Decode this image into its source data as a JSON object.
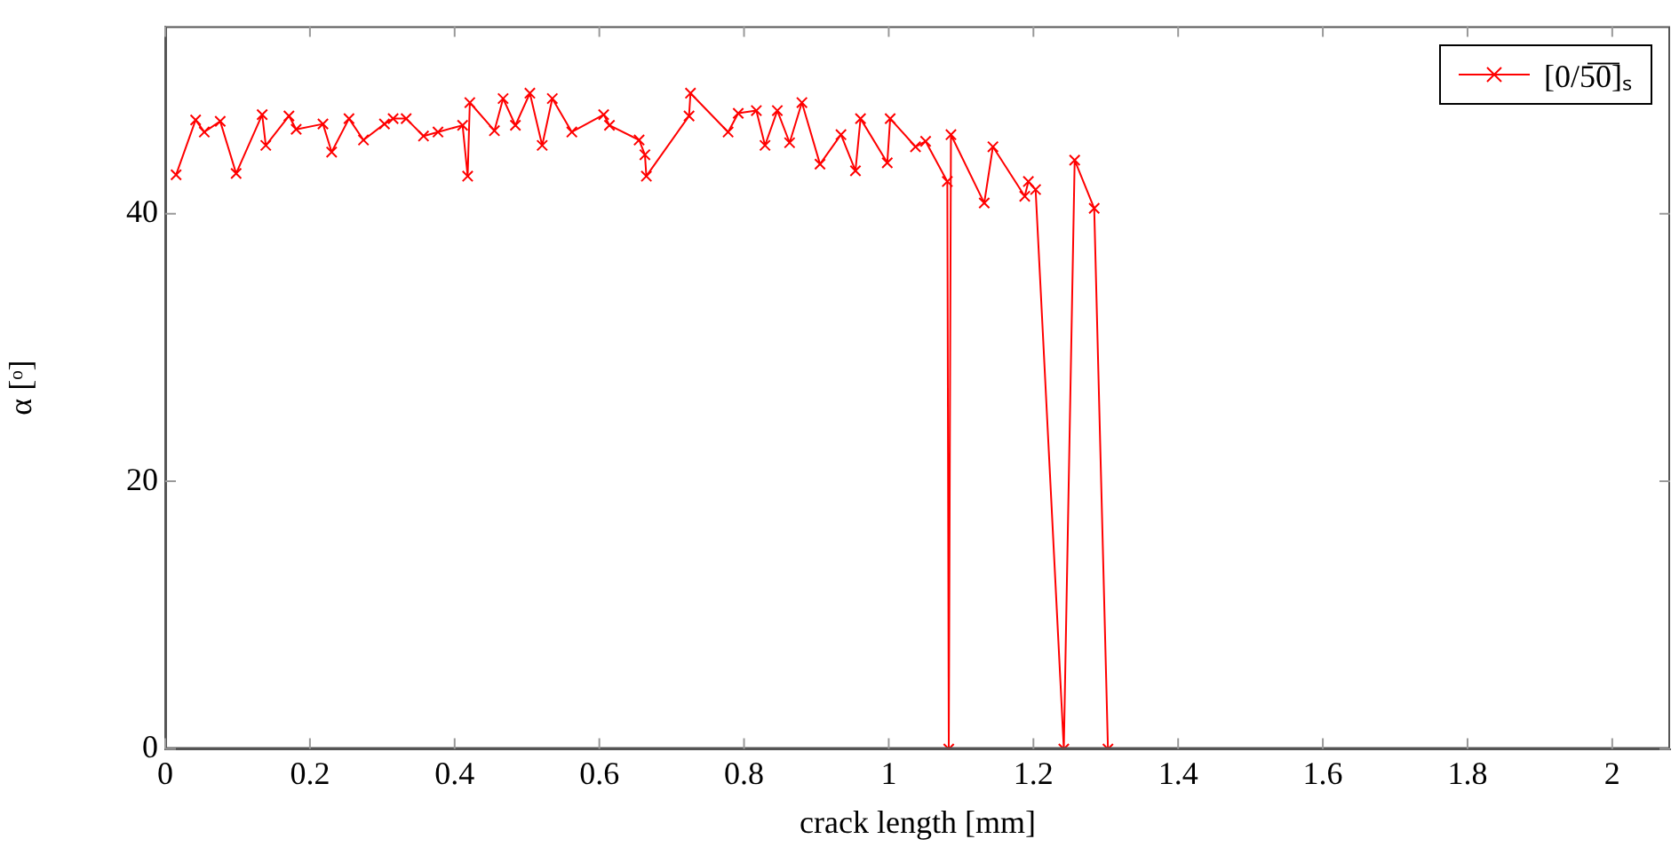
{
  "chart_data": {
    "type": "line",
    "xlabel": "crack length [mm]",
    "ylabel": "α [ᵒ]",
    "xlim": [
      0,
      2.08
    ],
    "ylim": [
      0,
      54
    ],
    "xticks": [
      0,
      0.2,
      0.4,
      0.6,
      0.8,
      1,
      1.2,
      1.4,
      1.6,
      1.8,
      2
    ],
    "yticks": [
      0,
      20,
      40
    ],
    "legend": "top right",
    "marker": "cross",
    "line_style": "solid",
    "series": [
      {
        "name": "[0/5̅0̅]ₛ",
        "color": "#ff0000",
        "x": [
          0.015,
          0.042,
          0.054,
          0.076,
          0.098,
          0.134,
          0.139,
          0.171,
          0.181,
          0.218,
          0.23,
          0.254,
          0.274,
          0.303,
          0.315,
          0.333,
          0.357,
          0.377,
          0.411,
          0.418,
          0.421,
          0.455,
          0.467,
          0.484,
          0.504,
          0.521,
          0.535,
          0.562,
          0.606,
          0.614,
          0.655,
          0.663,
          0.665,
          0.724,
          0.726,
          0.778,
          0.792,
          0.817,
          0.829,
          0.846,
          0.863,
          0.88,
          0.905,
          0.934,
          0.954,
          0.961,
          0.998,
          1.002,
          1.037,
          1.051,
          1.081,
          1.083,
          1.086,
          1.132,
          1.144,
          1.188,
          1.193,
          1.203,
          1.242,
          1.257,
          1.284,
          1.303
        ],
        "values": [
          42.9,
          47.0,
          46.1,
          46.9,
          43.0,
          47.4,
          45.1,
          47.3,
          46.3,
          46.7,
          44.6,
          47.1,
          45.5,
          46.7,
          47.1,
          47.1,
          45.8,
          46.1,
          46.6,
          42.8,
          48.3,
          46.2,
          48.6,
          46.6,
          49.0,
          45.1,
          48.6,
          46.1,
          47.4,
          46.6,
          45.5,
          44.4,
          42.8,
          47.3,
          49.0,
          46.1,
          47.5,
          47.7,
          45.1,
          47.7,
          45.3,
          48.3,
          43.7,
          45.9,
          43.2,
          47.1,
          43.8,
          47.1,
          45.0,
          45.4,
          42.4,
          0,
          45.9,
          40.8,
          45.0,
          41.3,
          42.4,
          41.8,
          0,
          44.0,
          40.4,
          0
        ]
      }
    ]
  }
}
